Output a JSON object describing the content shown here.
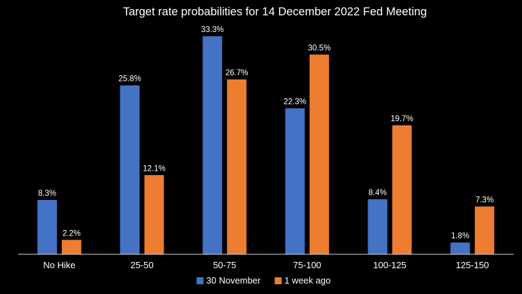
{
  "chart_data": {
    "type": "bar",
    "title": "Target rate probabilities for 14 December 2022 Fed Meeting",
    "xlabel": "",
    "ylabel": "",
    "categories": [
      "No Hike",
      "25-50",
      "50-75",
      "75-100",
      "100-125",
      "125-150"
    ],
    "series": [
      {
        "name": "30 November",
        "color": "#4472C4",
        "values": [
          8.3,
          25.8,
          33.3,
          22.3,
          8.4,
          1.8
        ],
        "labels": [
          "8.3%",
          "25.8%",
          "33.3%",
          "22.3%",
          "8.4%",
          "1.8%"
        ]
      },
      {
        "name": "1 week ago",
        "color": "#ED7D31",
        "values": [
          2.2,
          12.1,
          26.7,
          30.5,
          19.7,
          7.3
        ],
        "labels": [
          "2.2%",
          "12.1%",
          "26.7%",
          "30.5%",
          "19.7%",
          "7.3%"
        ]
      }
    ],
    "ylim": [
      0,
      35
    ],
    "grid": false,
    "legend": "bottom-center"
  }
}
